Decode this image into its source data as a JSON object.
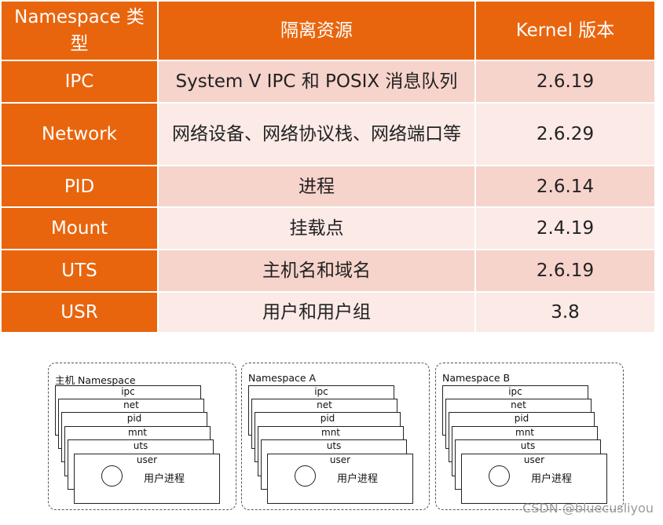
{
  "table": {
    "headers": [
      "Namespace 类型",
      "隔离资源",
      "Kernel 版本"
    ],
    "rows": [
      {
        "type": "IPC",
        "resource": "System V IPC 和 POSIX 消息队列",
        "version": "2.6.19"
      },
      {
        "type": "Network",
        "resource": "网络设备、网络协议栈、网络端口等",
        "version": "2.6.29"
      },
      {
        "type": "PID",
        "resource": "进程",
        "version": "2.6.14"
      },
      {
        "type": "Mount",
        "resource": "挂载点",
        "version": "2.4.19"
      },
      {
        "type": "UTS",
        "resource": "主机名和域名",
        "version": "2.6.19"
      },
      {
        "type": "USR",
        "resource": "用户和用户组",
        "version": "3.8"
      }
    ],
    "colors": {
      "header_bg": "#e8650e",
      "row_dark": "#f6d3cb",
      "row_light": "#fbeae6"
    }
  },
  "diagram": {
    "groups": [
      {
        "title": "主机 Namespace"
      },
      {
        "title": "Namespace A"
      },
      {
        "title": "Namespace B"
      }
    ],
    "layers": [
      "ipc",
      "net",
      "pid",
      "mnt",
      "uts",
      "user"
    ],
    "process_label": "用户进程"
  },
  "watermark": "CSDN @bluecusliyou"
}
